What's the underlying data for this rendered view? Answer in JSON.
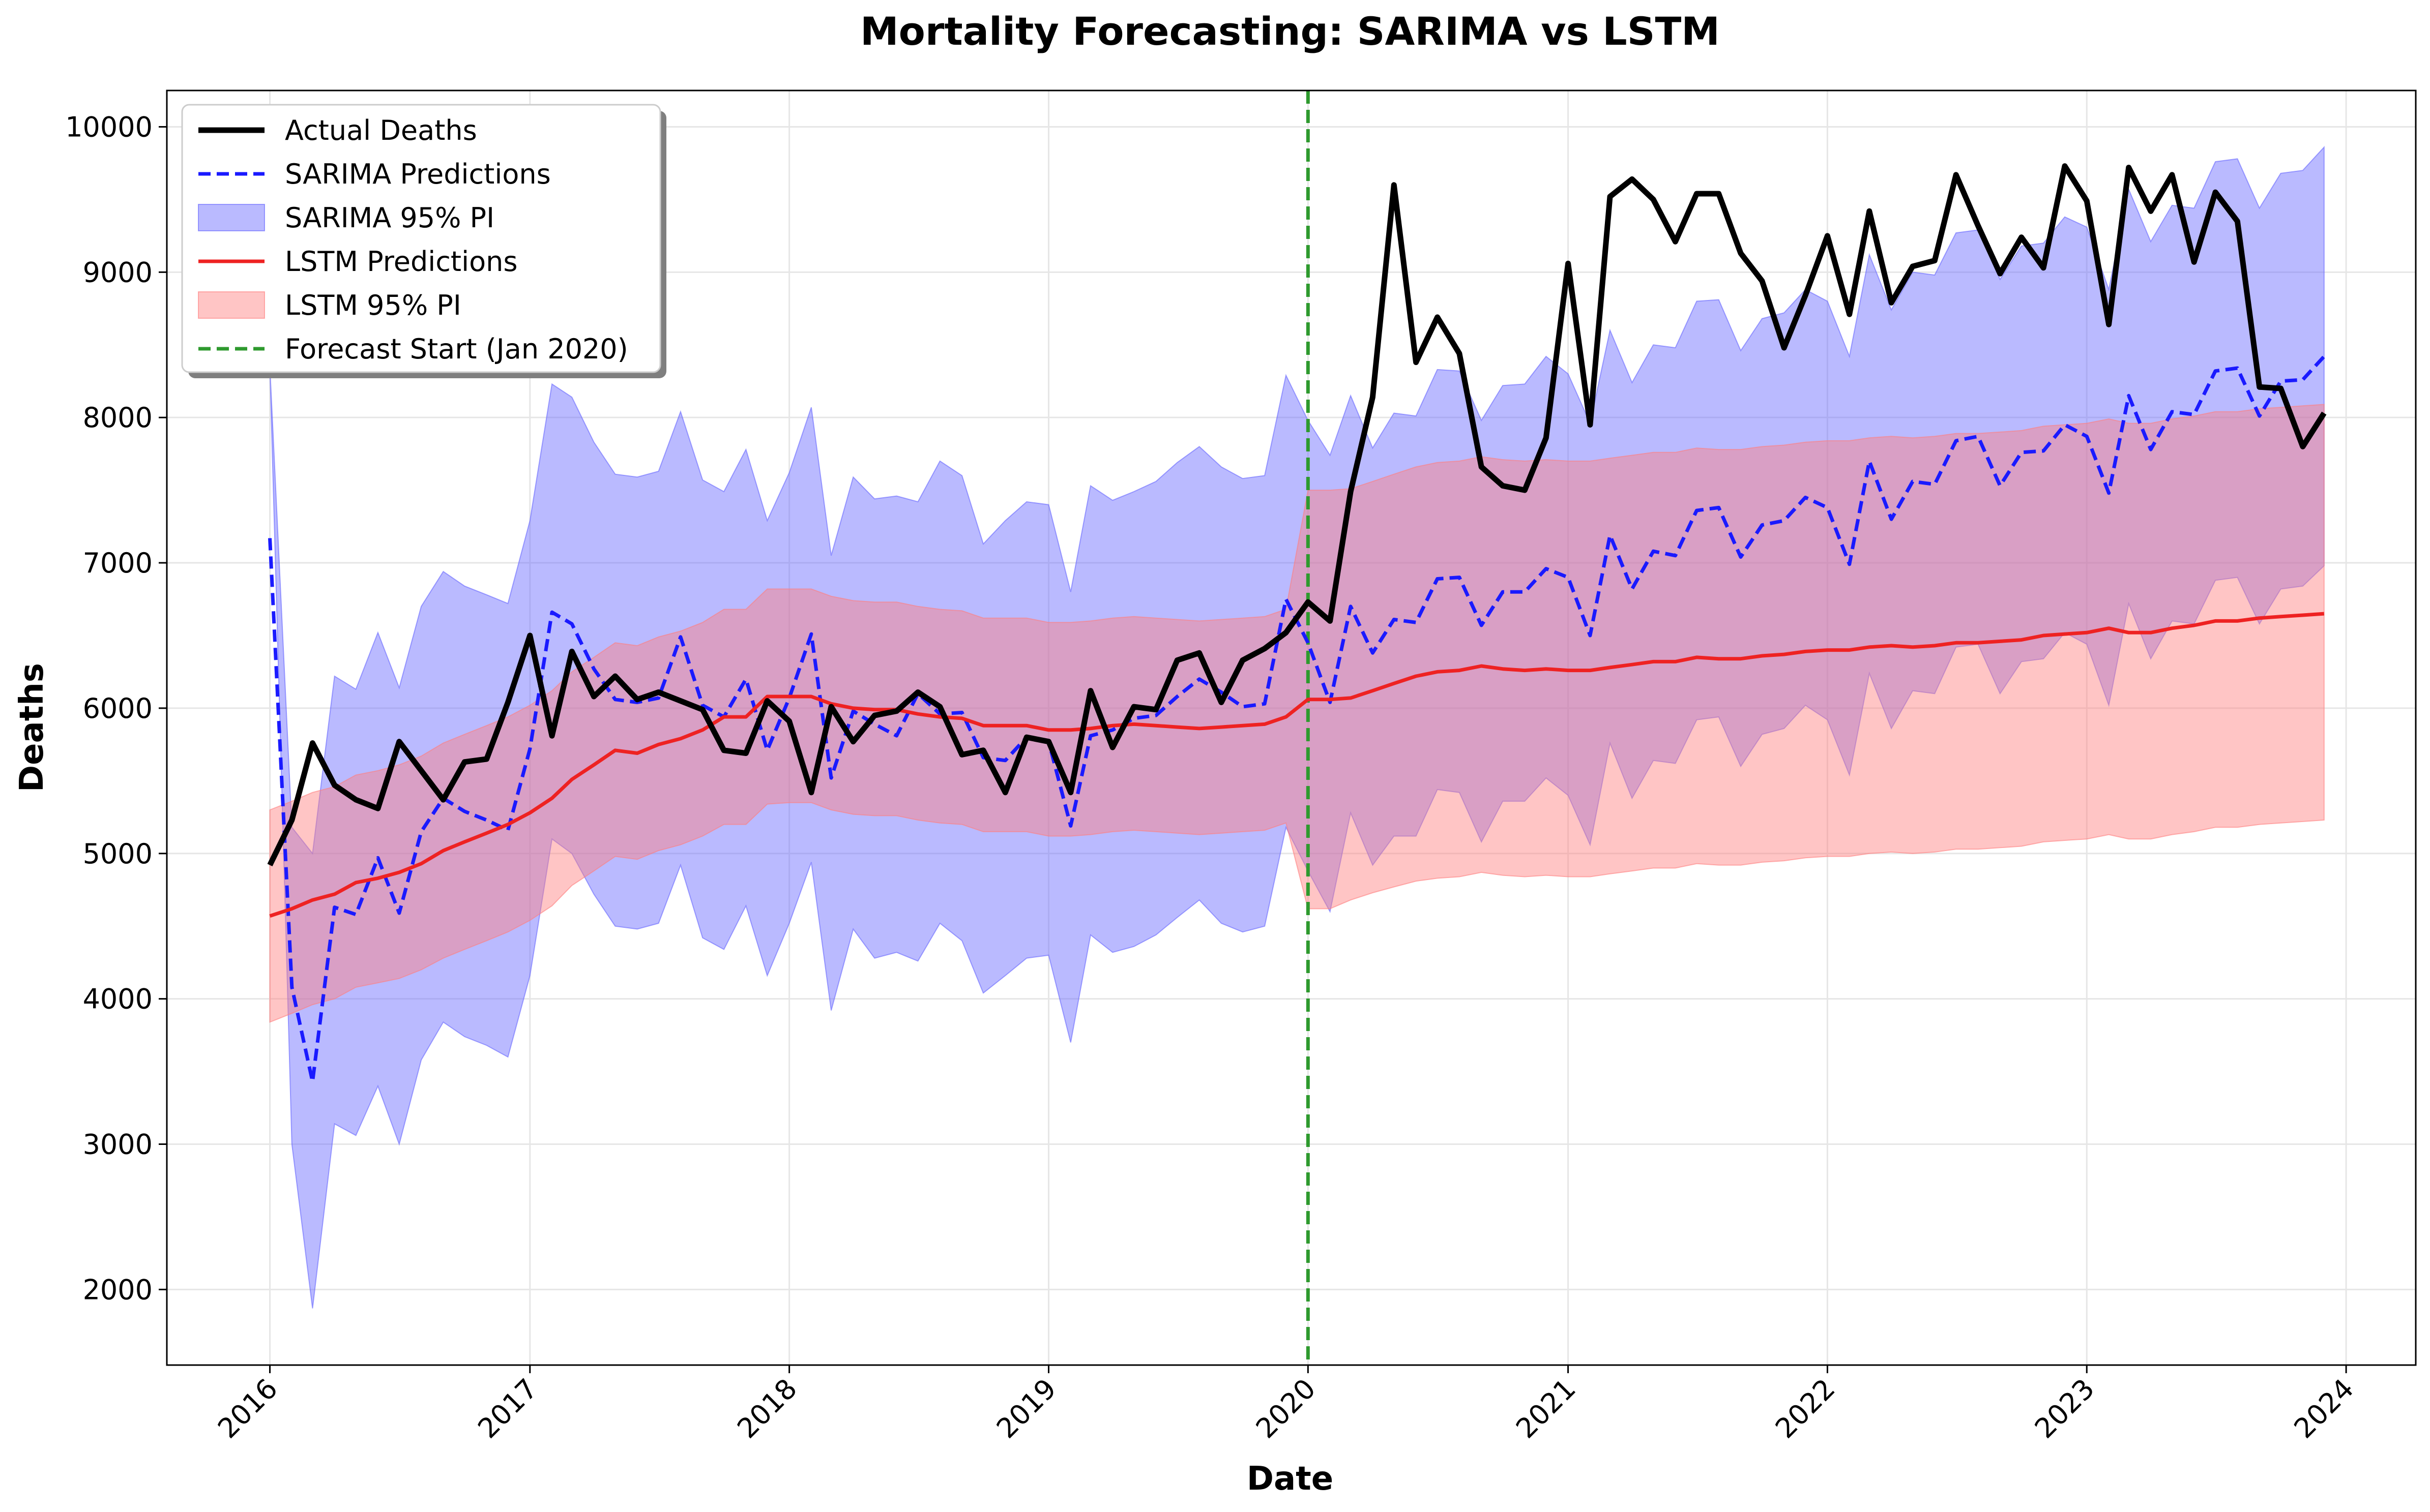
{
  "chart_data": {
    "type": "line",
    "title": "Mortality Forecasting: SARIMA vs LSTM",
    "xlabel": "Date",
    "ylabel": "Deaths",
    "xlim": [
      "2015-08-09",
      "2024-04-08"
    ],
    "ylim": [
      1480,
      10250
    ],
    "x_ticks": [
      "2016",
      "2017",
      "2018",
      "2019",
      "2020",
      "2021",
      "2022",
      "2023",
      "2024"
    ],
    "y_ticks": [
      2000,
      3000,
      4000,
      5000,
      6000,
      7000,
      8000,
      9000,
      10000
    ],
    "grid": true,
    "legend_position": "top-left",
    "x_start": "2016-01",
    "x_frequency": "monthly",
    "forecast_start": "2020-01",
    "series": [
      {
        "name": "Actual Deaths",
        "style": "solid",
        "color": "#000000",
        "values": [
          4920,
          5230,
          5760,
          5470,
          5370,
          5310,
          5770,
          5570,
          5370,
          5630,
          5650,
          6040,
          6500,
          5810,
          6390,
          6080,
          6220,
          6060,
          6110,
          6050,
          5990,
          5710,
          5690,
          6050,
          5910,
          5420,
          6010,
          5770,
          5950,
          5980,
          6110,
          6010,
          5680,
          5710,
          5420,
          5800,
          5770,
          5420,
          6120,
          5730,
          6010,
          5990,
          6330,
          6380,
          6040,
          6330,
          6410,
          6520,
          6730,
          6600,
          7490,
          8140,
          9600,
          8380,
          8690,
          8440,
          7660,
          7530,
          7500,
          7860,
          9060,
          7950,
          9520,
          9640,
          9500,
          9210,
          9540,
          9540,
          9130,
          8940,
          8480,
          8840,
          9250,
          8710,
          9420,
          8790,
          9040,
          9080,
          9670,
          9320,
          8990,
          9240,
          9030,
          9730,
          9490,
          8640,
          9720,
          9420,
          9670,
          9070,
          9550,
          9350,
          8210,
          8200,
          7800,
          8030
        ]
      },
      {
        "name": "SARIMA Predictions",
        "style": "dashed",
        "color": "#1a1aff",
        "values": [
          7170,
          4080,
          3430,
          4630,
          4580,
          4970,
          4590,
          5150,
          5380,
          5290,
          5230,
          5160,
          5720,
          6660,
          6580,
          6270,
          6060,
          6040,
          6070,
          6490,
          6020,
          5940,
          6200,
          5710,
          6070,
          6510,
          5520,
          5980,
          5890,
          5810,
          6100,
          5960,
          5970,
          5660,
          5640,
          5800,
          5770,
          5190,
          5810,
          5850,
          5930,
          5950,
          6080,
          6200,
          6110,
          6010,
          6030,
          6750,
          6450,
          6040,
          6700,
          6380,
          6610,
          6590,
          6890,
          6900,
          6570,
          6800,
          6800,
          6960,
          6900,
          6500,
          7190,
          6820,
          7080,
          7050,
          7360,
          7380,
          7040,
          7260,
          7290,
          7450,
          7380,
          6990,
          7700,
          7300,
          7560,
          7540,
          7840,
          7870,
          7530,
          7760,
          7770,
          7950,
          7870,
          7480,
          8150,
          7780,
          8040,
          8020,
          8320,
          8340,
          8010,
          8250,
          8260,
          8420
        ]
      },
      {
        "name": "LSTM Predictions",
        "style": "solid",
        "color": "#ee2222",
        "values": [
          4570,
          4620,
          4680,
          4720,
          4800,
          4830,
          4870,
          4930,
          5020,
          5080,
          5140,
          5200,
          5280,
          5380,
          5510,
          5610,
          5710,
          5690,
          5750,
          5790,
          5850,
          5940,
          5940,
          6080,
          6080,
          6080,
          6030,
          6000,
          5990,
          5990,
          5960,
          5940,
          5930,
          5880,
          5880,
          5880,
          5850,
          5850,
          5860,
          5880,
          5890,
          5880,
          5870,
          5860,
          5870,
          5880,
          5890,
          5940,
          6060,
          6060,
          6070,
          6120,
          6170,
          6220,
          6250,
          6260,
          6290,
          6270,
          6260,
          6270,
          6260,
          6260,
          6280,
          6300,
          6320,
          6320,
          6350,
          6340,
          6340,
          6360,
          6370,
          6390,
          6400,
          6400,
          6420,
          6430,
          6420,
          6430,
          6450,
          6450,
          6460,
          6470,
          6500,
          6510,
          6520,
          6550,
          6520,
          6520,
          6550,
          6570,
          6600,
          6600,
          6620,
          6630,
          6640,
          6650
        ]
      }
    ],
    "bands": [
      {
        "name": "SARIMA 95% PI",
        "color": "#6666ff",
        "lower": [
          8350,
          3000,
          1870,
          3140,
          3060,
          3400,
          3000,
          3580,
          3840,
          3740,
          3680,
          3600,
          4160,
          5100,
          5000,
          4720,
          4500,
          4480,
          4520,
          4920,
          4420,
          4340,
          4640,
          4160,
          4520,
          4940,
          3920,
          4480,
          4280,
          4320,
          4260,
          4520,
          4400,
          4040,
          4160,
          4280,
          4300,
          3700,
          4440,
          4320,
          4360,
          4440,
          4560,
          4680,
          4520,
          4460,
          4500,
          5180,
          4880,
          4600,
          5280,
          4920,
          5120,
          5120,
          5440,
          5420,
          5080,
          5360,
          5360,
          5520,
          5400,
          5060,
          5760,
          5380,
          5640,
          5620,
          5920,
          5940,
          5600,
          5820,
          5860,
          6020,
          5920,
          5540,
          6240,
          5860,
          6120,
          6100,
          6420,
          6440,
          6100,
          6320,
          6340,
          6520,
          6440,
          6020,
          6720,
          6340,
          6600,
          6580,
          6880,
          6900,
          6580,
          6820,
          6840,
          6980
        ],
        "upper": [
          8350,
          5180,
          5000,
          6220,
          6130,
          6520,
          6140,
          6700,
          6940,
          6840,
          6780,
          6720,
          7290,
          8230,
          8140,
          7830,
          7610,
          7590,
          7630,
          8040,
          7570,
          7490,
          7780,
          7290,
          7620,
          8070,
          7050,
          7590,
          7440,
          7460,
          7420,
          7700,
          7600,
          7130,
          7290,
          7420,
          7400,
          6800,
          7530,
          7430,
          7490,
          7560,
          7690,
          7800,
          7660,
          7580,
          7600,
          8290,
          7980,
          7740,
          8150,
          7790,
          8030,
          8010,
          8330,
          8320,
          7980,
          8220,
          8230,
          8420,
          8300,
          7960,
          8600,
          8240,
          8500,
          8480,
          8800,
          8810,
          8460,
          8680,
          8720,
          8880,
          8800,
          8420,
          9120,
          8740,
          9000,
          8980,
          9270,
          9290,
          8950,
          9180,
          9200,
          9380,
          9310,
          8880,
          9570,
          9210,
          9460,
          9440,
          9760,
          9780,
          9440,
          9680,
          9700,
          9860
        ]
      },
      {
        "name": "LSTM 95% PI",
        "color": "#ff7f7f",
        "lower": [
          3840,
          3900,
          3960,
          4000,
          4080,
          4110,
          4140,
          4200,
          4280,
          4340,
          4400,
          4460,
          4540,
          4640,
          4780,
          4880,
          4980,
          4960,
          5020,
          5060,
          5120,
          5200,
          5200,
          5340,
          5350,
          5350,
          5300,
          5270,
          5260,
          5260,
          5230,
          5210,
          5200,
          5150,
          5150,
          5150,
          5120,
          5120,
          5130,
          5150,
          5160,
          5150,
          5140,
          5130,
          5140,
          5150,
          5160,
          5210,
          4620,
          4620,
          4680,
          4730,
          4770,
          4810,
          4830,
          4840,
          4870,
          4850,
          4840,
          4850,
          4840,
          4840,
          4860,
          4880,
          4900,
          4900,
          4930,
          4920,
          4920,
          4940,
          4950,
          4970,
          4980,
          4980,
          5000,
          5010,
          5000,
          5010,
          5030,
          5030,
          5040,
          5050,
          5080,
          5090,
          5100,
          5130,
          5100,
          5100,
          5130,
          5150,
          5180,
          5180,
          5200,
          5210,
          5220,
          5230
        ],
        "upper": [
          5300,
          5360,
          5420,
          5460,
          5540,
          5570,
          5610,
          5670,
          5760,
          5820,
          5880,
          5940,
          6020,
          6120,
          6250,
          6350,
          6450,
          6430,
          6490,
          6530,
          6590,
          6680,
          6680,
          6820,
          6820,
          6820,
          6770,
          6740,
          6730,
          6730,
          6700,
          6680,
          6670,
          6620,
          6620,
          6620,
          6590,
          6590,
          6600,
          6620,
          6630,
          6620,
          6610,
          6600,
          6610,
          6620,
          6630,
          6680,
          7500,
          7500,
          7510,
          7560,
          7610,
          7660,
          7690,
          7700,
          7730,
          7710,
          7700,
          7710,
          7700,
          7700,
          7720,
          7740,
          7760,
          7760,
          7790,
          7780,
          7780,
          7800,
          7810,
          7830,
          7840,
          7840,
          7860,
          7870,
          7860,
          7870,
          7890,
          7890,
          7900,
          7910,
          7940,
          7950,
          7960,
          7990,
          7960,
          7960,
          7990,
          8010,
          8040,
          8040,
          8060,
          8070,
          8080,
          8090
        ]
      }
    ],
    "legend": [
      {
        "label": "Actual Deaths",
        "kind": "line",
        "color": "#000000",
        "dash": "none"
      },
      {
        "label": "SARIMA Predictions",
        "kind": "line",
        "color": "#1a1aff",
        "dash": "dashed"
      },
      {
        "label": "SARIMA 95% PI",
        "kind": "patch",
        "color": "#6666ff"
      },
      {
        "label": "LSTM Predictions",
        "kind": "line",
        "color": "#ee2222",
        "dash": "none"
      },
      {
        "label": "LSTM 95% PI",
        "kind": "patch",
        "color": "#ff7f7f"
      },
      {
        "label": "Forecast Start (Jan 2020)",
        "kind": "line",
        "color": "#2e9a2e",
        "dash": "dashed"
      }
    ]
  }
}
